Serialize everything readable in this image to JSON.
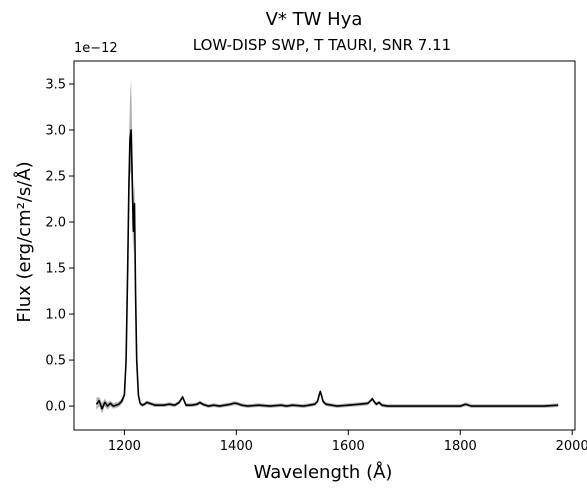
{
  "chart_data": {
    "type": "line",
    "title": "V* TW Hya",
    "subtitle": "LOW-DISP SWP, T TAURI, SNR 7.11",
    "xlabel": "Wavelength (Å)",
    "ylabel": "Flux (erg/cm²/s/Å)",
    "y_offset_label": "1e−12",
    "xlim": [
      1110,
      2005
    ],
    "ylim": [
      -0.26,
      3.75
    ],
    "x_ticks": [
      1200,
      1400,
      1600,
      1800,
      2000
    ],
    "x_tick_labels": [
      "1200",
      "1400",
      "1600",
      "1800",
      "2000"
    ],
    "y_ticks": [
      0.0,
      0.5,
      1.0,
      1.5,
      2.0,
      2.5,
      3.0,
      3.5
    ],
    "y_tick_labels": [
      "0.0",
      "0.5",
      "1.0",
      "1.5",
      "2.0",
      "2.5",
      "3.0",
      "3.5"
    ],
    "grid": false,
    "colors": {
      "flux": "#000000",
      "error": "#aaaaaa"
    },
    "series": [
      {
        "x": [
          1150,
          1155,
          1160,
          1165,
          1170,
          1175,
          1180,
          1185,
          1190,
          1195,
          1200,
          1203,
          1206,
          1208,
          1210,
          1212,
          1214,
          1216,
          1218,
          1220,
          1222,
          1225,
          1228,
          1232,
          1236,
          1240,
          1245,
          1250,
          1255,
          1260,
          1270,
          1280,
          1290,
          1298,
          1302,
          1304,
          1306,
          1310,
          1320,
          1330,
          1335,
          1340,
          1350,
          1360,
          1370,
          1380,
          1390,
          1395,
          1400,
          1405,
          1410,
          1420,
          1440,
          1460,
          1480,
          1490,
          1500,
          1520,
          1530,
          1540,
          1545,
          1548,
          1550,
          1552,
          1555,
          1560,
          1570,
          1580,
          1600,
          1620,
          1635,
          1640,
          1643,
          1646,
          1650,
          1655,
          1660,
          1670,
          1700,
          1750,
          1800,
          1810,
          1815,
          1820,
          1850,
          1900,
          1950,
          1975
        ],
        "y": [
          0.02,
          0.06,
          -0.03,
          0.04,
          0.0,
          0.03,
          0.0,
          0.01,
          0.02,
          0.05,
          0.12,
          0.5,
          1.5,
          2.4,
          2.9,
          3.0,
          2.5,
          1.9,
          2.2,
          1.2,
          0.5,
          0.12,
          0.03,
          0.01,
          0.02,
          0.04,
          0.03,
          0.02,
          0.01,
          0.01,
          0.01,
          0.02,
          0.01,
          0.04,
          0.08,
          0.1,
          0.07,
          0.01,
          0.01,
          0.02,
          0.04,
          0.02,
          0.0,
          0.01,
          0.0,
          0.01,
          0.02,
          0.03,
          0.03,
          0.02,
          0.01,
          0.0,
          0.01,
          0.0,
          0.01,
          0.0,
          0.01,
          0.0,
          0.01,
          0.02,
          0.05,
          0.12,
          0.16,
          0.12,
          0.05,
          0.02,
          0.01,
          0.0,
          0.01,
          0.02,
          0.03,
          0.06,
          0.08,
          0.05,
          0.02,
          0.04,
          0.01,
          0.0,
          0.0,
          0.0,
          0.0,
          0.02,
          0.01,
          0.0,
          0.0,
          0.0,
          0.0,
          0.01
        ],
        "upper": [
          0.09,
          0.1,
          0.03,
          0.08,
          0.04,
          0.06,
          0.03,
          0.04,
          0.05,
          0.08,
          0.16,
          0.62,
          1.8,
          2.85,
          3.35,
          3.55,
          3.0,
          2.2,
          2.45,
          1.4,
          0.62,
          0.16,
          0.05,
          0.03,
          0.04,
          0.06,
          0.05,
          0.04,
          0.03,
          0.03,
          0.03,
          0.04,
          0.03,
          0.06,
          0.1,
          0.12,
          0.09,
          0.03,
          0.03,
          0.04,
          0.06,
          0.04,
          0.02,
          0.03,
          0.02,
          0.03,
          0.04,
          0.05,
          0.05,
          0.04,
          0.03,
          0.02,
          0.03,
          0.02,
          0.03,
          0.02,
          0.03,
          0.02,
          0.03,
          0.04,
          0.07,
          0.14,
          0.18,
          0.14,
          0.07,
          0.04,
          0.03,
          0.02,
          0.03,
          0.04,
          0.05,
          0.08,
          0.1,
          0.07,
          0.04,
          0.06,
          0.03,
          0.02,
          0.02,
          0.02,
          0.02,
          0.04,
          0.03,
          0.02,
          0.02,
          0.02,
          0.02,
          0.03
        ],
        "lower": [
          -0.04,
          0.0,
          -0.08,
          0.0,
          -0.04,
          0.0,
          -0.03,
          -0.02,
          -0.01,
          0.02,
          0.08,
          0.4,
          1.25,
          2.0,
          2.5,
          2.55,
          2.05,
          1.65,
          1.95,
          1.0,
          0.4,
          0.08,
          0.01,
          -0.01,
          0.0,
          0.02,
          0.01,
          0.0,
          -0.01,
          -0.01,
          -0.01,
          0.0,
          -0.01,
          0.02,
          0.06,
          0.08,
          0.05,
          -0.01,
          -0.01,
          0.0,
          0.02,
          0.0,
          -0.02,
          -0.01,
          -0.02,
          -0.01,
          0.0,
          0.01,
          0.01,
          0.0,
          -0.01,
          -0.02,
          -0.01,
          -0.02,
          -0.01,
          -0.02,
          -0.01,
          -0.02,
          -0.01,
          0.0,
          0.03,
          0.1,
          0.14,
          0.1,
          0.03,
          0.0,
          -0.01,
          -0.02,
          -0.01,
          0.0,
          0.01,
          0.04,
          0.06,
          0.03,
          0.0,
          0.02,
          -0.01,
          -0.02,
          -0.02,
          -0.02,
          -0.02,
          0.0,
          -0.01,
          -0.02,
          -0.02,
          -0.02,
          -0.02,
          -0.01
        ]
      }
    ]
  }
}
